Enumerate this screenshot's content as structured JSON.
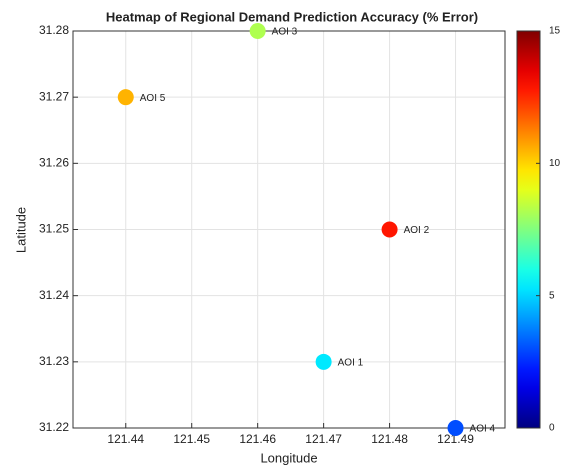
{
  "chart_data": {
    "type": "scatter",
    "title": "Heatmap of Regional Demand Prediction Accuracy (% Error)",
    "xlabel": "Longitude",
    "ylabel": "Latitude",
    "x": [
      121.47,
      121.48,
      121.46,
      121.49,
      121.44
    ],
    "y": [
      31.23,
      31.25,
      31.28,
      31.22,
      31.27
    ],
    "values": [
      5.3,
      12.8,
      8.2,
      3.0,
      10.5
    ],
    "point_labels": [
      "AOI 1",
      "AOI 2",
      "AOI 3",
      "AOI 4",
      "AOI 5"
    ],
    "colormap": "jet",
    "xlim": [
      121.432,
      121.4975
    ],
    "ylim": [
      31.22,
      31.28
    ],
    "xticks": [
      121.44,
      121.45,
      121.46,
      121.47,
      121.48,
      121.49
    ],
    "yticks": [
      31.22,
      31.23,
      31.24,
      31.25,
      31.26,
      31.27,
      31.28
    ],
    "clim": [
      0,
      15
    ],
    "cticks": [
      0,
      5,
      10,
      15
    ],
    "grid": true
  }
}
